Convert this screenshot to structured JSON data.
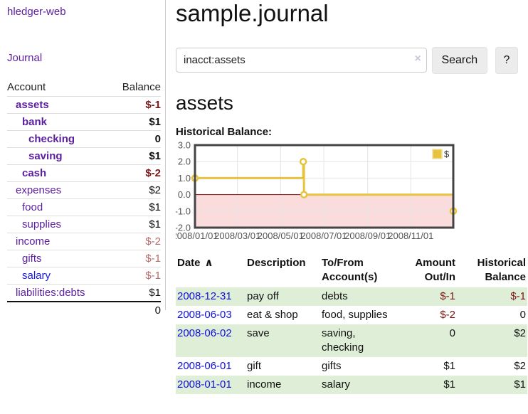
{
  "colors": {
    "link_purple": "#5b1fa0",
    "link_blue": "#1717e6",
    "date_link_blue": "#0f0fe0",
    "negative_strong": "#7c1616",
    "negative_soft": "#b46b6b",
    "row_stripe_green": "#dfeed7",
    "chart_line_gold": "#e7c340",
    "chart_negative_fill": "#fbdcdc",
    "chart_zero_line": "#8b0000",
    "chart_border": "#444444",
    "chart_grid": "#e4e4e4"
  },
  "sidebar": {
    "app_title": "hledger-web",
    "journal_link": "Journal",
    "accounts": {
      "headers": {
        "account": "Account",
        "balance": "Balance"
      },
      "rows": [
        {
          "name": "assets",
          "balance": "$-1",
          "indent": 1,
          "bold": true,
          "neg": "strong"
        },
        {
          "name": "bank",
          "balance": "$1",
          "indent": 2,
          "bold": true
        },
        {
          "name": "checking",
          "balance": "0",
          "indent": 3,
          "bold": true
        },
        {
          "name": "saving",
          "balance": "$1",
          "indent": 3,
          "bold": true
        },
        {
          "name": "cash",
          "balance": "$-2",
          "indent": 2,
          "bold": true,
          "neg": "strong"
        },
        {
          "name": "expenses",
          "balance": "$2",
          "indent": 1
        },
        {
          "name": "food",
          "balance": "$1",
          "indent": 2
        },
        {
          "name": "supplies",
          "balance": "$1",
          "indent": 2
        },
        {
          "name": "income",
          "balance": "$-2",
          "indent": 1,
          "neg": "soft"
        },
        {
          "name": "gifts",
          "balance": "$-1",
          "indent": 2,
          "neg": "soft"
        },
        {
          "name": "salary",
          "balance": "$-1",
          "indent": 2,
          "neg": "soft",
          "blue": true
        },
        {
          "name": "liabilities:debts",
          "balance": "$1",
          "indent": 1
        }
      ],
      "total": "0"
    }
  },
  "header": {
    "title": "sample.journal"
  },
  "search": {
    "value": "inacct:assets",
    "clear_icon": "×",
    "search_button": "Search",
    "help_button": "?"
  },
  "account_page": {
    "heading": "assets",
    "chart_title": "Historical Balance:"
  },
  "chart_data": {
    "type": "line",
    "title": "Historical Balance:",
    "step": true,
    "x_range": [
      "2008-01-01",
      "2008-12-31"
    ],
    "ylim": [
      -2,
      3
    ],
    "y_ticks": [
      "3.0",
      "2.0",
      "1.0",
      "0.0",
      "-1.0",
      "-2.0"
    ],
    "x_ticks": [
      "2008/01/01",
      "2008/03/01",
      "2008/05/01",
      "2008/07/01",
      "2008/09/01",
      "2008/11/01"
    ],
    "grid": true,
    "legend": {
      "label": "$",
      "position": "top-right"
    },
    "series": [
      {
        "name": "$",
        "points": [
          {
            "date": "2008-01-01",
            "value": 1
          },
          {
            "date": "2008-06-02",
            "value": 2
          },
          {
            "date": "2008-06-03",
            "value": 0
          },
          {
            "date": "2008-12-31",
            "value": -1
          }
        ]
      }
    ]
  },
  "register": {
    "headers": {
      "date": "Date",
      "sort_asc_icon": "∧",
      "description": "Description",
      "accounts": "To/From Account(s)",
      "amount": "Amount Out/In",
      "balance": "Historical Balance"
    },
    "rows": [
      {
        "date": "2008-12-31",
        "description": "pay off",
        "accounts": "debts",
        "amount": "$-1",
        "balance": "$-1",
        "amount_neg": true,
        "balance_neg": true
      },
      {
        "date": "2008-06-03",
        "description": "eat & shop",
        "accounts": "food, supplies",
        "amount": "$-2",
        "balance": "0",
        "amount_neg": true,
        "balance_neg": false
      },
      {
        "date": "2008-06-02",
        "description": "save",
        "accounts": "saving, checking",
        "amount": "0",
        "balance": "$2",
        "amount_neg": false,
        "balance_neg": false
      },
      {
        "date": "2008-06-01",
        "description": "gift",
        "accounts": "gifts",
        "amount": "$1",
        "balance": "$2",
        "amount_neg": false,
        "balance_neg": false
      },
      {
        "date": "2008-01-01",
        "description": "income",
        "accounts": "salary",
        "amount": "$1",
        "balance": "$1",
        "amount_neg": false,
        "balance_neg": false
      }
    ]
  }
}
